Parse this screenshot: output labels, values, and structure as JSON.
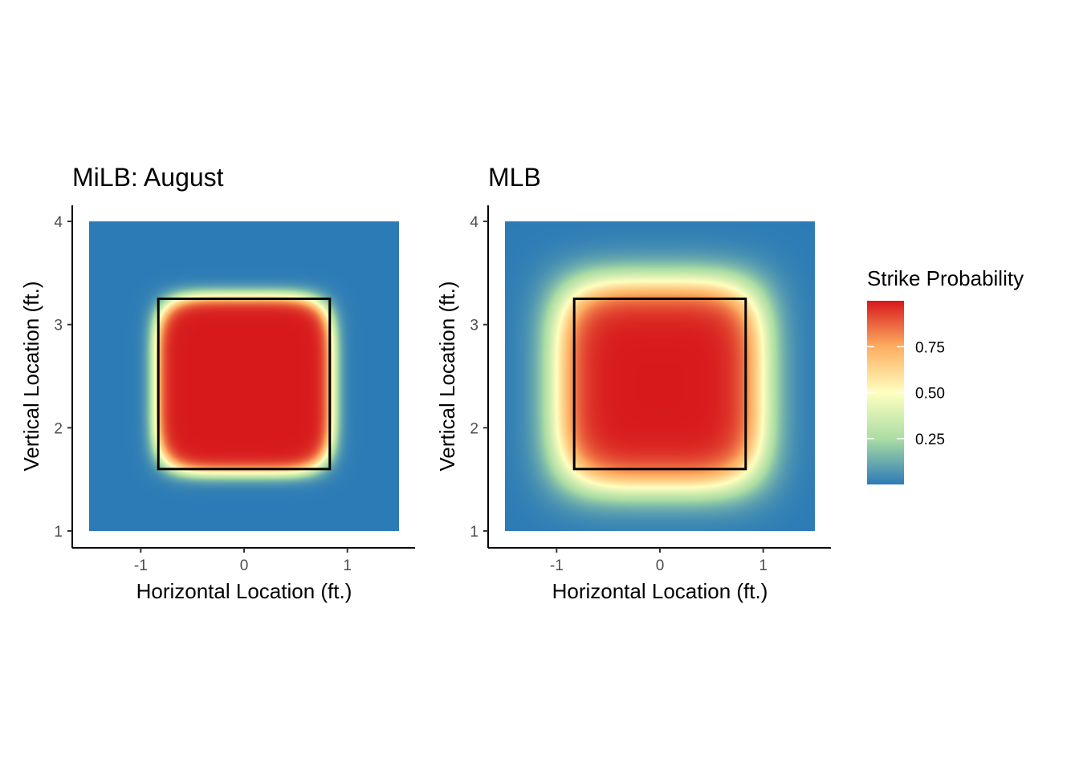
{
  "chart_data": [
    {
      "type": "heatmap",
      "title": "MiLB: August",
      "xlabel": "Horizontal Location (ft.)",
      "ylabel": "Vertical Location (ft.)",
      "xlim": [
        -1.5,
        1.5
      ],
      "ylim": [
        1,
        4
      ],
      "x_ticks": [
        "-1",
        "0",
        "1"
      ],
      "y_ticks": [
        "1",
        "2",
        "3",
        "4"
      ],
      "strike_zone": {
        "x": [
          -0.83,
          0.83
        ],
        "y": [
          1.6,
          3.25
        ]
      },
      "probability_field": {
        "center_x": 0,
        "center_y": 2.42,
        "half_width": 0.86,
        "half_height": 0.86,
        "edge_width": 0.05,
        "shape_power": 5
      }
    },
    {
      "type": "heatmap",
      "title": "MLB",
      "xlabel": "Horizontal Location (ft.)",
      "ylabel": "Vertical Location (ft.)",
      "xlim": [
        -1.5,
        1.5
      ],
      "ylim": [
        1,
        4
      ],
      "x_ticks": [
        "-1",
        "0",
        "1"
      ],
      "y_ticks": [
        "1",
        "2",
        "3",
        "4"
      ],
      "strike_zone": {
        "x": [
          -0.83,
          0.83
        ],
        "y": [
          1.6,
          3.25
        ]
      },
      "probability_field": {
        "center_x": 0,
        "center_y": 2.42,
        "half_width": 1.0,
        "half_height": 1.0,
        "edge_width": 0.11,
        "shape_power": 4
      }
    }
  ],
  "legend": {
    "title": "Strike Probability",
    "placement": "right",
    "range": [
      0,
      1
    ],
    "ticks": [
      "0.25",
      "0.50",
      "0.75"
    ],
    "tick_values": [
      0.25,
      0.5,
      0.75
    ]
  },
  "colors": {
    "palette": [
      "#2c7bb6",
      "#abdda4",
      "#ffffbf",
      "#fdae61",
      "#d7191c"
    ],
    "strike_zone_line": "#000000",
    "axis_line": "#000000"
  }
}
